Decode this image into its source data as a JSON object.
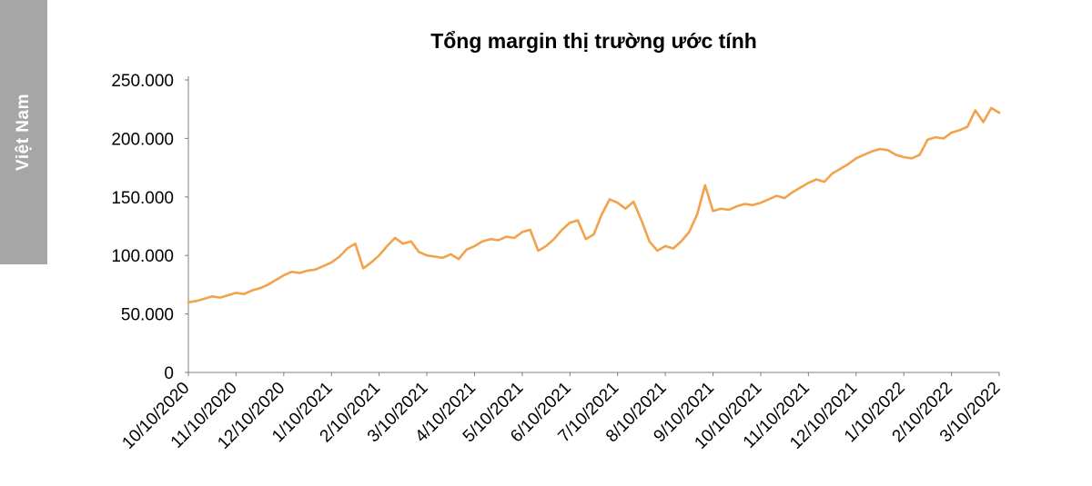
{
  "sidebar": {
    "label": "Việt Nam",
    "bg_color": "#a6a6a6",
    "text_color": "#ffffff"
  },
  "chart_data": {
    "type": "line",
    "title": "Tổng margin thị trường ước tính",
    "line_color": "#f2a24b",
    "axis_color": "#7f7f7f",
    "tick_text_color": "#000000",
    "grid": "off",
    "legend": "none",
    "ylim": [
      0,
      250000
    ],
    "y_ticks": [
      {
        "v": 0,
        "label": "0"
      },
      {
        "v": 50000,
        "label": "50.000"
      },
      {
        "v": 100000,
        "label": "100.000"
      },
      {
        "v": 150000,
        "label": "150.000"
      },
      {
        "v": 200000,
        "label": "200.000"
      },
      {
        "v": 250000,
        "label": "250.000"
      }
    ],
    "x_tick_labels": [
      "10/10/2020",
      "11/10/2020",
      "12/10/2020",
      "1/10/2021",
      "2/10/2021",
      "3/10/2021",
      "4/10/2021",
      "5/10/2021",
      "6/10/2021",
      "7/10/2021",
      "8/10/2021",
      "9/10/2021",
      "10/10/2021",
      "11/10/2021",
      "12/10/2021",
      "1/10/2022",
      "2/10/2022",
      "3/10/2022"
    ],
    "x_range_months": 17,
    "points_per_month": 6,
    "series": [
      {
        "name": "Tổng margin thị trường ước tính",
        "values": [
          60000,
          61000,
          63000,
          65000,
          64000,
          66000,
          68000,
          67000,
          70000,
          72000,
          75000,
          79000,
          83000,
          86000,
          85000,
          87000,
          88000,
          91000,
          94000,
          99000,
          106000,
          110000,
          89000,
          94000,
          100000,
          108000,
          115000,
          110000,
          112000,
          103000,
          100000,
          99000,
          98000,
          101000,
          97000,
          105000,
          108000,
          112000,
          114000,
          113000,
          116000,
          115000,
          120000,
          122000,
          104000,
          108000,
          114000,
          122000,
          128000,
          130000,
          114000,
          118000,
          135000,
          148000,
          145000,
          140000,
          146000,
          130000,
          112000,
          104000,
          108000,
          106000,
          112000,
          120000,
          135000,
          160000,
          138000,
          140000,
          139000,
          142000,
          144000,
          143000,
          145000,
          148000,
          151000,
          149000,
          154000,
          158000,
          162000,
          165000,
          163000,
          170000,
          174000,
          178000,
          183000,
          186000,
          189000,
          191000,
          190000,
          186000,
          184000,
          183000,
          186000,
          199000,
          201000,
          200000,
          205000,
          207000,
          210000,
          224000,
          214000,
          226000,
          222000
        ]
      }
    ]
  }
}
